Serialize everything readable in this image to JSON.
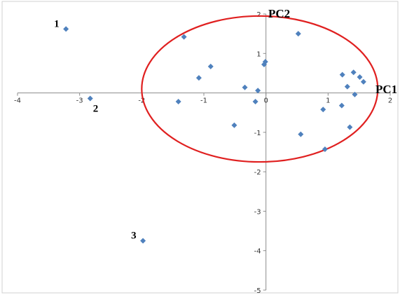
{
  "chart_data": {
    "type": "scatter",
    "title": "",
    "xlabel": "PC1",
    "ylabel": "PC2",
    "xlim": [
      -4,
      2
    ],
    "ylim": [
      -5,
      2
    ],
    "x_ticks": [
      "-4",
      "-3",
      "-2",
      "-1",
      "0",
      "1",
      "2"
    ],
    "y_ticks": [
      "2",
      "1",
      "-1",
      "-2",
      "-3",
      "-4",
      "-5"
    ],
    "grid": false,
    "legend": "none",
    "marker_color": "#4F81BD",
    "ellipse_color": "#E02020",
    "ellipse": {
      "cx": -0.1,
      "cy": 0.1,
      "rx": 1.9,
      "ry": 1.85
    },
    "labeled_points": [
      {
        "label": "1",
        "x": -3.22,
        "y": 1.62
      },
      {
        "label": "2",
        "x": -2.83,
        "y": -0.14
      },
      {
        "label": "3",
        "x": -1.98,
        "y": -3.75
      }
    ],
    "points": [
      {
        "x": -1.32,
        "y": 1.42
      },
      {
        "x": -0.89,
        "y": 0.67
      },
      {
        "x": -1.08,
        "y": 0.38
      },
      {
        "x": -1.41,
        "y": -0.22
      },
      {
        "x": -0.51,
        "y": -0.82
      },
      {
        "x": -0.34,
        "y": 0.14
      },
      {
        "x": -0.17,
        "y": -0.22
      },
      {
        "x": -0.13,
        "y": 0.06
      },
      {
        "x": -0.03,
        "y": 0.72
      },
      {
        "x": -0.01,
        "y": 0.79
      },
      {
        "x": 0.52,
        "y": 1.5
      },
      {
        "x": 0.56,
        "y": -1.05
      },
      {
        "x": 0.92,
        "y": -0.42
      },
      {
        "x": 0.95,
        "y": -1.43
      },
      {
        "x": 1.22,
        "y": -0.32
      },
      {
        "x": 1.23,
        "y": 0.46
      },
      {
        "x": 1.31,
        "y": 0.16
      },
      {
        "x": 1.35,
        "y": -0.87
      },
      {
        "x": 1.41,
        "y": 0.52
      },
      {
        "x": 1.43,
        "y": -0.04
      },
      {
        "x": 1.51,
        "y": 0.4
      },
      {
        "x": 1.57,
        "y": 0.28
      }
    ]
  }
}
